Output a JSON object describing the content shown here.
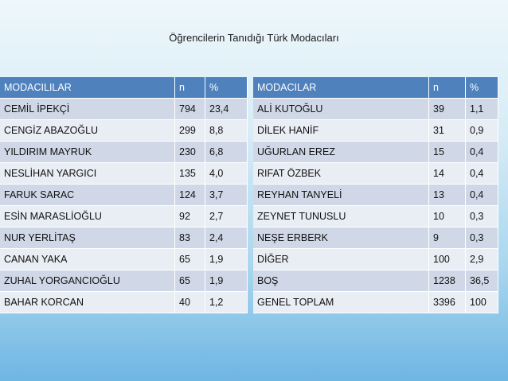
{
  "title": "Öğrencilerin Tanıdığı Türk Modacıları",
  "left_table": {
    "headers": [
      "MODACILILAR",
      "n",
      "%"
    ],
    "rows": [
      [
        "CEMİL İPEKÇİ",
        "794",
        "23,4"
      ],
      [
        "CENGİZ ABAZOĞLU",
        "299",
        "8,8"
      ],
      [
        "YILDIRIM MAYRUK",
        "230",
        "6,8"
      ],
      [
        "NESLİHAN YARGICI",
        "135",
        "4,0"
      ],
      [
        "FARUK SARAC",
        "124",
        "3,7"
      ],
      [
        "ESİN MARASLİOĞLU",
        "92",
        "2,7"
      ],
      [
        "NUR YERLİTAŞ",
        "83",
        "2,4"
      ],
      [
        "CANAN YAKA",
        "65",
        "1,9"
      ],
      [
        "ZUHAL YORGANCIOĞLU",
        "65",
        "1,9"
      ],
      [
        "BAHAR KORCAN",
        "40",
        "1,2"
      ]
    ]
  },
  "right_table": {
    "headers": [
      "MODACILAR",
      "n",
      "%"
    ],
    "rows": [
      [
        "ALİ KUTOĞLU",
        "39",
        "1,1"
      ],
      [
        "DİLEK HANİF",
        "31",
        "0,9"
      ],
      [
        "UĞURLAN EREZ",
        "15",
        "0,4"
      ],
      [
        "RIFAT ÖZBEK",
        "14",
        "0,4"
      ],
      [
        "REYHAN TANYELİ",
        "13",
        "0,4"
      ],
      [
        "ZEYNET TUNUSLU",
        "10",
        "0,3"
      ],
      [
        "NEŞE ERBERK",
        "9",
        "0,3"
      ],
      [
        "DİĞER",
        "100",
        "2,9"
      ],
      [
        "BOŞ",
        "1238",
        "36,5"
      ],
      [
        "GENEL TOPLAM",
        "3396",
        "100"
      ]
    ]
  }
}
